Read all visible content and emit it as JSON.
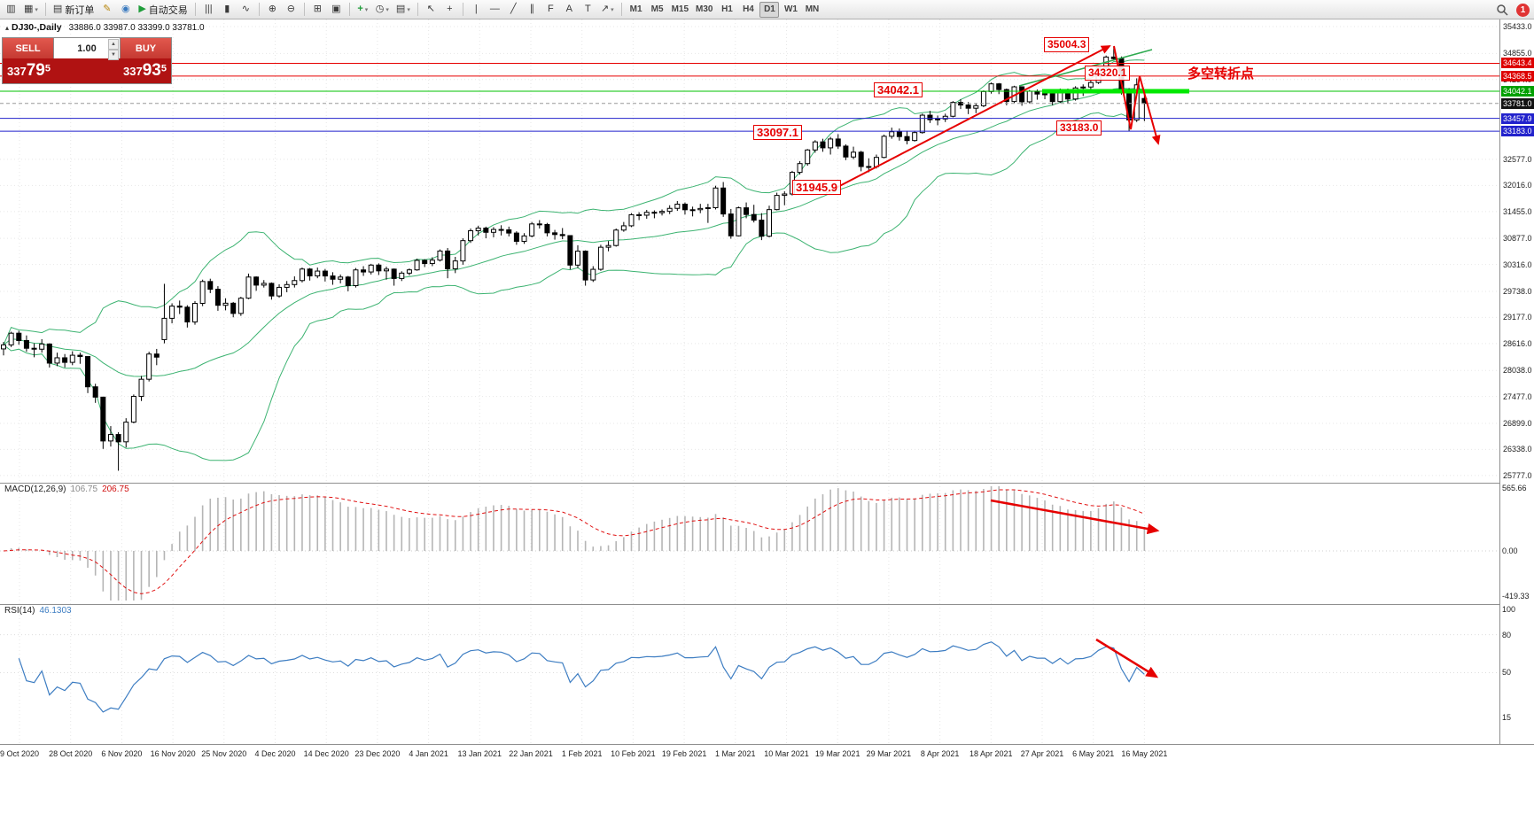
{
  "chart_header": {
    "collapse_icon": "▴",
    "symbol": "DJ30-,Daily",
    "ohlc": "33886.0 33987.0 33399.0 33781.0"
  },
  "toolbar": {
    "dropdown_glyph": "▾",
    "notification_count": "1",
    "timeframes": [
      "M1",
      "M5",
      "M15",
      "M30",
      "H1",
      "H4",
      "D1",
      "W1",
      "MN"
    ],
    "active_timeframe": "D1",
    "items": [
      {
        "t": "icon",
        "name": "new-chart",
        "g": "▥"
      },
      {
        "t": "icon",
        "name": "chart-profiles",
        "g": "▦",
        "dd": true
      },
      {
        "t": "sep"
      },
      {
        "t": "btn",
        "name": "new-order",
        "g": "▤",
        "label": "新订单"
      },
      {
        "t": "icon",
        "name": "metaeditor",
        "g": "✎",
        "c": "#b8860b"
      },
      {
        "t": "icon",
        "name": "market-news",
        "g": "◉",
        "c": "#3a7abf"
      },
      {
        "t": "btn",
        "name": "autotrading",
        "g": "▶",
        "label": "自动交易",
        "c": "#1f9d3a"
      },
      {
        "t": "sep"
      },
      {
        "t": "icon",
        "name": "bar-chart-mode",
        "g": "|||"
      },
      {
        "t": "icon",
        "name": "candlestick-mode",
        "g": "▮"
      },
      {
        "t": "icon",
        "name": "line-chart-mode",
        "g": "∿"
      },
      {
        "t": "sep"
      },
      {
        "t": "icon",
        "name": "zoom-in",
        "g": "⊕"
      },
      {
        "t": "icon",
        "name": "zoom-out",
        "g": "⊖"
      },
      {
        "t": "sep"
      },
      {
        "t": "icon",
        "name": "tile-windows",
        "g": "⊞"
      },
      {
        "t": "icon",
        "name": "auto-arrange",
        "g": "▣"
      },
      {
        "t": "sep"
      },
      {
        "t": "icon",
        "name": "indicators",
        "g": "+",
        "c": "#1f9d3a",
        "dd": true
      },
      {
        "t": "icon",
        "name": "periods",
        "g": "◷",
        "dd": true
      },
      {
        "t": "icon",
        "name": "templates",
        "g": "▤",
        "dd": true
      },
      {
        "t": "sep"
      },
      {
        "t": "icon",
        "name": "cursor",
        "g": "↖"
      },
      {
        "t": "icon",
        "name": "crosshair",
        "g": "+"
      },
      {
        "t": "sep"
      },
      {
        "t": "icon",
        "name": "vertical-line",
        "g": "|"
      },
      {
        "t": "icon",
        "name": "horizontal-line",
        "g": "—"
      },
      {
        "t": "icon",
        "name": "trendline",
        "g": "╱"
      },
      {
        "t": "icon",
        "name": "equidistant-channel",
        "g": "∥"
      },
      {
        "t": "icon",
        "name": "fibonacci",
        "g": "F"
      },
      {
        "t": "icon",
        "name": "text",
        "g": "A"
      },
      {
        "t": "icon",
        "name": "text-label",
        "g": "T"
      },
      {
        "t": "icon",
        "name": "arrows",
        "g": "↗",
        "dd": true
      }
    ]
  },
  "trade_panel": {
    "sell_label": "SELL",
    "buy_label": "BUY",
    "volume": "1.00",
    "vol_up_icon": "▲",
    "vol_down_icon": "▼",
    "sell_price": "33779.5",
    "buy_price": "33793.5"
  },
  "annotations": {
    "peak": "35004.3",
    "rebound": "34320.1",
    "level_34042": "34042.1",
    "level_33097": "33097.1",
    "level_31945": "31945.9",
    "level_33183": "33183.0",
    "turning_point": "多空转折点"
  },
  "price_scale": {
    "ticks": [
      "35433.0",
      "34855.0",
      "34294.0",
      "32577.0",
      "32016.0",
      "31455.0",
      "30877.0",
      "30316.0",
      "29738.0",
      "29177.0",
      "28616.0",
      "28038.0",
      "27477.0",
      "26899.0",
      "26338.0",
      "25777.0"
    ],
    "badges": [
      {
        "value": "34643.4",
        "color": "#dd0000"
      },
      {
        "value": "34368.5",
        "color": "#dd0000"
      },
      {
        "value": "34042.1",
        "color": "#00a000"
      },
      {
        "value": "33781.0",
        "color": "#111111"
      },
      {
        "value": "33457.9",
        "color": "#2222cc"
      },
      {
        "value": "33183.0",
        "color": "#2222cc"
      }
    ]
  },
  "macd_panel": {
    "name": "MACD(12,26,9)",
    "value_main": "106.75",
    "value_signal": "206.75",
    "scale_top": "565.66",
    "scale_zero": "0.00",
    "scale_bottom": "-419.33"
  },
  "rsi_panel": {
    "name": "RSI(14)",
    "value": "46.1303",
    "scale": [
      "100",
      "80",
      "50",
      "15"
    ]
  },
  "time_axis": [
    "9 Oct 2020",
    "28 Oct 2020",
    "6 Nov 2020",
    "16 Nov 2020",
    "25 Nov 2020",
    "4 Dec 2020",
    "14 Dec 2020",
    "23 Dec 2020",
    "4 Jan 2021",
    "13 Jan 2021",
    "22 Jan 2021",
    "1 Feb 2021",
    "10 Feb 2021",
    "19 Feb 2021",
    "1 Mar 2021",
    "10 Mar 2021",
    "19 Mar 2021",
    "29 Mar 2021",
    "8 Apr 2021",
    "18 Apr 2021",
    "27 Apr 2021",
    "6 May 2021",
    "16 May 2021"
  ],
  "chart_data": {
    "type": "candlestick",
    "symbol": "DJ30",
    "timeframe": "Daily",
    "last_ohlc": {
      "open": 33886.0,
      "high": 33987.0,
      "low": 33399.0,
      "close": 33781.0
    },
    "current_price": 33781.0,
    "y_axis_range": [
      25622,
      35585
    ],
    "indicators": {
      "bollinger_period": 20,
      "bollinger_dev": 2,
      "macd": [
        12,
        26,
        9
      ],
      "rsi_period": 14
    },
    "colors": {
      "bull": "#ffffff",
      "bear": "#000000",
      "bands": "#3cb371",
      "macd_hist": "#b5b5b5",
      "macd_signal": "#e01010",
      "rsi": "#3d7dc2",
      "drawing": "#e60000"
    },
    "candles": [
      [
        28500,
        28650,
        28360,
        28587
      ],
      [
        28587,
        28870,
        28540,
        28838
      ],
      [
        28838,
        28890,
        28590,
        28680
      ],
      [
        28680,
        28790,
        28440,
        28514
      ],
      [
        28514,
        28620,
        28320,
        28494
      ],
      [
        28494,
        28710,
        28420,
        28606
      ],
      [
        28606,
        28620,
        28100,
        28195
      ],
      [
        28195,
        28420,
        28130,
        28309
      ],
      [
        28309,
        28390,
        28100,
        28211
      ],
      [
        28211,
        28450,
        28150,
        28364
      ],
      [
        28364,
        28420,
        28180,
        28336
      ],
      [
        28336,
        28340,
        27550,
        27685
      ],
      [
        27685,
        27750,
        27340,
        27463
      ],
      [
        27463,
        27470,
        26350,
        26520
      ],
      [
        26520,
        26840,
        26400,
        26659
      ],
      [
        26659,
        26710,
        25880,
        26502
      ],
      [
        26502,
        27010,
        26380,
        26925
      ],
      [
        26925,
        27520,
        26900,
        27480
      ],
      [
        27480,
        27920,
        27380,
        27848
      ],
      [
        27848,
        28440,
        27800,
        28390
      ],
      [
        28390,
        28500,
        28150,
        28323
      ],
      [
        28700,
        29900,
        28620,
        29158
      ],
      [
        29158,
        29480,
        29050,
        29421
      ],
      [
        29421,
        29540,
        29250,
        29398
      ],
      [
        29398,
        29440,
        28960,
        29080
      ],
      [
        29080,
        29530,
        29020,
        29480
      ],
      [
        29480,
        29990,
        29420,
        29950
      ],
      [
        29950,
        30010,
        29700,
        29783
      ],
      [
        29783,
        29850,
        29320,
        29438
      ],
      [
        29438,
        29590,
        29330,
        29483
      ],
      [
        29483,
        29510,
        29180,
        29263
      ],
      [
        29263,
        29620,
        29210,
        29591
      ],
      [
        29591,
        30120,
        29570,
        30046
      ],
      [
        30046,
        30060,
        29750,
        29872
      ],
      [
        29872,
        29980,
        29820,
        29910
      ],
      [
        29910,
        29930,
        29560,
        29639
      ],
      [
        29639,
        29890,
        29600,
        29824
      ],
      [
        29824,
        29960,
        29720,
        29884
      ],
      [
        29884,
        30060,
        29820,
        29970
      ],
      [
        29970,
        30250,
        29930,
        30218
      ],
      [
        30218,
        30240,
        29970,
        30070
      ],
      [
        30070,
        30250,
        30020,
        30174
      ],
      [
        30174,
        30220,
        29950,
        30069
      ],
      [
        30069,
        30150,
        29880,
        29999
      ],
      [
        29999,
        30100,
        29910,
        30046
      ],
      [
        30046,
        30070,
        29740,
        29861
      ],
      [
        29861,
        30240,
        29820,
        30199
      ],
      [
        30199,
        30280,
        30070,
        30155
      ],
      [
        30155,
        30330,
        30100,
        30303
      ],
      [
        30303,
        30340,
        30090,
        30179
      ],
      [
        30179,
        30270,
        29990,
        30216
      ],
      [
        30216,
        30230,
        29860,
        30015
      ],
      [
        30015,
        30170,
        29960,
        30130
      ],
      [
        30130,
        30230,
        30080,
        30200
      ],
      [
        30200,
        30440,
        30180,
        30404
      ],
      [
        30404,
        30430,
        30260,
        30336
      ],
      [
        30336,
        30470,
        30280,
        30410
      ],
      [
        30410,
        30640,
        30380,
        30606
      ],
      [
        30606,
        30670,
        30020,
        30224
      ],
      [
        30224,
        30480,
        30130,
        30392
      ],
      [
        30392,
        30880,
        30310,
        30829
      ],
      [
        30829,
        31090,
        30780,
        31041
      ],
      [
        31041,
        31150,
        30940,
        31098
      ],
      [
        31098,
        31130,
        30880,
        31008
      ],
      [
        31008,
        31120,
        30900,
        31069
      ],
      [
        31069,
        31160,
        30940,
        31061
      ],
      [
        31061,
        31130,
        30920,
        30992
      ],
      [
        30992,
        31030,
        30740,
        30814
      ],
      [
        30814,
        30990,
        30760,
        30930
      ],
      [
        30930,
        31230,
        30900,
        31188
      ],
      [
        31188,
        31270,
        31090,
        31176
      ],
      [
        31176,
        31210,
        30920,
        30997
      ],
      [
        30997,
        31060,
        30850,
        30960
      ],
      [
        30960,
        31100,
        30860,
        30937
      ],
      [
        30937,
        30940,
        30210,
        30303
      ],
      [
        30303,
        30730,
        30240,
        30603
      ],
      [
        30603,
        30620,
        29860,
        29983
      ],
      [
        29983,
        30280,
        29940,
        30212
      ],
      [
        30212,
        30740,
        30180,
        30687
      ],
      [
        30687,
        30820,
        30600,
        30724
      ],
      [
        30724,
        31090,
        30700,
        31056
      ],
      [
        31056,
        31230,
        31020,
        31148
      ],
      [
        31148,
        31420,
        31120,
        31386
      ],
      [
        31386,
        31440,
        31270,
        31376
      ],
      [
        31376,
        31490,
        31300,
        31438
      ],
      [
        31438,
        31480,
        31310,
        31430
      ],
      [
        31430,
        31500,
        31370,
        31458
      ],
      [
        31458,
        31590,
        31400,
        31523
      ],
      [
        31523,
        31680,
        31470,
        31613
      ],
      [
        31613,
        31650,
        31390,
        31493
      ],
      [
        31493,
        31560,
        31350,
        31494
      ],
      [
        31494,
        31620,
        31420,
        31521
      ],
      [
        31521,
        31620,
        31210,
        31537
      ],
      [
        31537,
        32010,
        31500,
        31961
      ],
      [
        31961,
        32090,
        31340,
        31402
      ],
      [
        31402,
        31510,
        30870,
        30932
      ],
      [
        30932,
        31560,
        30920,
        31535
      ],
      [
        31535,
        31650,
        31310,
        31391
      ],
      [
        31391,
        31600,
        31220,
        31270
      ],
      [
        31270,
        31420,
        30840,
        30924
      ],
      [
        30924,
        31580,
        30900,
        31496
      ],
      [
        31496,
        31860,
        31480,
        31802
      ],
      [
        31802,
        31890,
        31590,
        31832
      ],
      [
        31832,
        32330,
        31800,
        32297
      ],
      [
        32297,
        32540,
        32250,
        32486
      ],
      [
        32486,
        32800,
        32440,
        32779
      ],
      [
        32779,
        32990,
        32720,
        32953
      ],
      [
        32953,
        33020,
        32740,
        32825
      ],
      [
        32825,
        33060,
        32680,
        33015
      ],
      [
        33015,
        33120,
        32800,
        32862
      ],
      [
        32862,
        32900,
        32560,
        32628
      ],
      [
        32628,
        32850,
        32580,
        32731
      ],
      [
        32731,
        32760,
        32320,
        32423
      ],
      [
        32423,
        32600,
        32300,
        32420
      ],
      [
        32420,
        32680,
        32380,
        32619
      ],
      [
        32619,
        33110,
        32600,
        33073
      ],
      [
        33073,
        33260,
        33020,
        33171
      ],
      [
        33171,
        33240,
        32980,
        33067
      ],
      [
        33067,
        33190,
        32900,
        32982
      ],
      [
        32982,
        33190,
        32960,
        33153
      ],
      [
        33153,
        33560,
        33130,
        33527
      ],
      [
        33527,
        33620,
        33360,
        33430
      ],
      [
        33430,
        33520,
        33310,
        33446
      ],
      [
        33446,
        33560,
        33380,
        33504
      ],
      [
        33504,
        33830,
        33480,
        33801
      ],
      [
        33801,
        33870,
        33660,
        33746
      ],
      [
        33746,
        33810,
        33550,
        33677
      ],
      [
        33677,
        33780,
        33570,
        33731
      ],
      [
        33731,
        34060,
        33700,
        34036
      ],
      [
        34036,
        34230,
        33990,
        34201
      ],
      [
        34201,
        34220,
        33980,
        34078
      ],
      [
        34078,
        34100,
        33740,
        33821
      ],
      [
        33821,
        34160,
        33790,
        34137
      ],
      [
        34137,
        34150,
        33730,
        33815
      ],
      [
        33815,
        34070,
        33780,
        34043
      ],
      [
        34043,
        34080,
        33860,
        33982
      ],
      [
        33982,
        34050,
        33870,
        33985
      ],
      [
        33985,
        34020,
        33740,
        33820
      ],
      [
        33820,
        34100,
        33790,
        34060
      ],
      [
        34060,
        34100,
        33780,
        33875
      ],
      [
        33875,
        34150,
        33840,
        34113
      ],
      [
        34113,
        34190,
        33940,
        34133
      ],
      [
        34133,
        34280,
        34080,
        34230
      ],
      [
        34230,
        34560,
        34200,
        34548
      ],
      [
        34548,
        34810,
        34520,
        34778
      ],
      [
        34778,
        35004,
        34700,
        34743
      ],
      [
        34743,
        34790,
        33970,
        34060
      ],
      [
        34060,
        34110,
        33183,
        33425
      ],
      [
        33425,
        34320,
        33380,
        34180
      ],
      [
        33886,
        33987,
        33399,
        33781
      ]
    ],
    "hlines": [
      {
        "price": 34643.4,
        "color": "#e60000",
        "width": 1
      },
      {
        "price": 34368.5,
        "color": "#e60000",
        "width": 1
      },
      {
        "price": 34042.1,
        "color": "#00c000",
        "width": 1
      },
      {
        "price": 33457.9,
        "color": "#2222cc",
        "width": 1
      },
      {
        "price": 33183.0,
        "color": "#2222cc",
        "width": 1
      }
    ],
    "drawings": {
      "trend_line_up": {
        "from": [
          932,
          196
        ],
        "to": [
          1252,
          30
        ],
        "width": 2
      },
      "zigzag": {
        "points": [
          [
            1257,
            30
          ],
          [
            1276,
            124
          ],
          [
            1286,
            64
          ],
          [
            1307,
            140
          ]
        ],
        "width": 2
      },
      "green_trendline": {
        "from": [
          1150,
          75
        ],
        "to": [
          1300,
          34
        ],
        "color": "#2daa4f",
        "width": 1.5
      },
      "support_segment": {
        "from": [
          1176,
          81
        ],
        "to": [
          1342,
          81
        ],
        "color": "#00e800",
        "width": 5
      },
      "macd_arrow": {
        "from": [
          1118,
          20
        ],
        "to": [
          1306,
          54
        ],
        "width": 2.5
      },
      "rsi_arrow": {
        "from": [
          1237,
          40
        ],
        "to": [
          1305,
          82
        ],
        "width": 2.5
      }
    }
  }
}
